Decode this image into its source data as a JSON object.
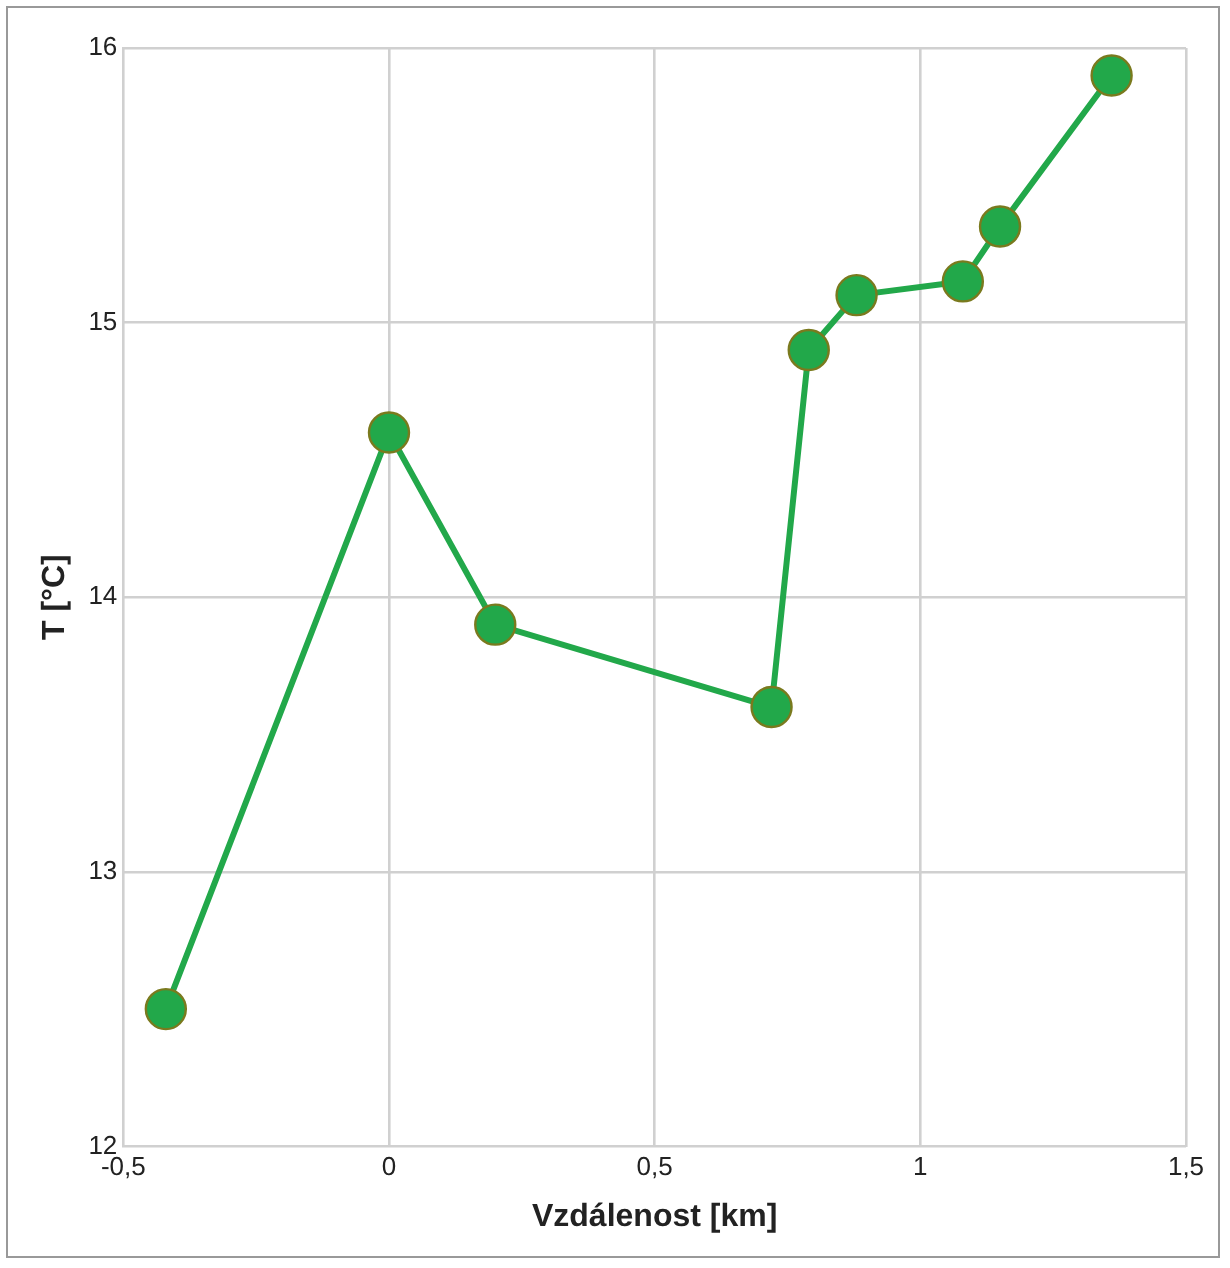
{
  "chart_data": {
    "type": "line",
    "xlabel": "Vzdálenost [km]",
    "ylabel": "T [°C]",
    "x": [
      -0.42,
      0,
      0.2,
      0.72,
      0.79,
      0.88,
      1.08,
      1.15,
      1.36
    ],
    "series": [
      {
        "color": "#22a84a",
        "values": [
          12.5,
          14.6,
          13.9,
          13.6,
          14.9,
          15.1,
          15.15,
          15.35,
          15.9
        ]
      }
    ],
    "xlim": [
      -0.5,
      1.5
    ],
    "xticks": [
      {
        "value": -0.5,
        "label": "-0,5"
      },
      0,
      {
        "value": 0.5,
        "label": "0,5"
      },
      1,
      {
        "value": 1.5,
        "label": "1,5"
      }
    ],
    "ylim": [
      12,
      16
    ],
    "yticks": [
      12,
      13,
      14,
      15,
      16
    ],
    "grid": true,
    "legend": false,
    "marker": "circle",
    "line_style": "solid"
  }
}
